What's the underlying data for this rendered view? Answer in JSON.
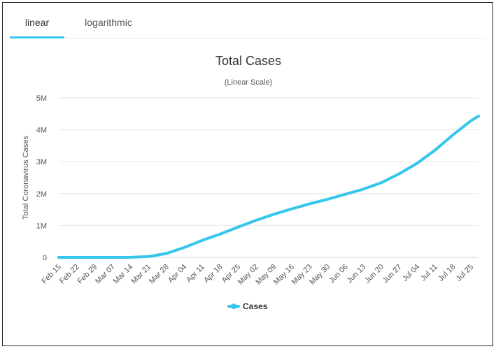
{
  "tabs": [
    {
      "label": "linear",
      "active": true
    },
    {
      "label": "logarithmic",
      "active": false
    }
  ],
  "colors": {
    "accent": "#35c6ec",
    "series": "#35c6ec",
    "grid": "#e6e6e6",
    "text": "#333333"
  },
  "chart_data": {
    "type": "line",
    "title": "Total Cases",
    "subtitle": "(Linear Scale)",
    "ylabel": "Total Coronavirus Cases",
    "xlabel": "",
    "ylim": [
      0,
      5000000
    ],
    "yticks": [
      {
        "value": 0,
        "label": "0"
      },
      {
        "value": 1000000,
        "label": "1M"
      },
      {
        "value": 2000000,
        "label": "2M"
      },
      {
        "value": 3000000,
        "label": "3M"
      },
      {
        "value": 4000000,
        "label": "4M"
      },
      {
        "value": 5000000,
        "label": "5M"
      }
    ],
    "xticks": [
      "Feb 15",
      "Feb 22",
      "Feb 29",
      "Mar 07",
      "Mar 14",
      "Mar 21",
      "Mar 28",
      "Apr 04",
      "Apr 11",
      "Apr 18",
      "Apr 25",
      "May 02",
      "May 09",
      "May 16",
      "May 23",
      "May 30",
      "Jun 06",
      "Jun 13",
      "Jun 20",
      "Jun 27",
      "Jul 04",
      "Jul 11",
      "Jul 18",
      "Jul 25"
    ],
    "grid": true,
    "legend": "bottom-center",
    "series": [
      {
        "name": "Cases",
        "x": [
          "Feb 15",
          "Feb 22",
          "Feb 29",
          "Mar 07",
          "Mar 14",
          "Mar 21",
          "Mar 28",
          "Apr 04",
          "Apr 11",
          "Apr 18",
          "Apr 25",
          "May 02",
          "May 09",
          "May 16",
          "May 23",
          "May 30",
          "Jun 06",
          "Jun 13",
          "Jun 20",
          "Jun 27",
          "Jul 04",
          "Jul 11",
          "Jul 18",
          "Jul 25",
          "Jul 28"
        ],
        "values": [
          15,
          15,
          70,
          400,
          2200,
          24000,
          120000,
          310000,
          530000,
          730000,
          950000,
          1160000,
          1350000,
          1520000,
          1680000,
          1820000,
          1980000,
          2140000,
          2340000,
          2620000,
          2950000,
          3360000,
          3840000,
          4280000,
          4430000
        ]
      }
    ]
  }
}
